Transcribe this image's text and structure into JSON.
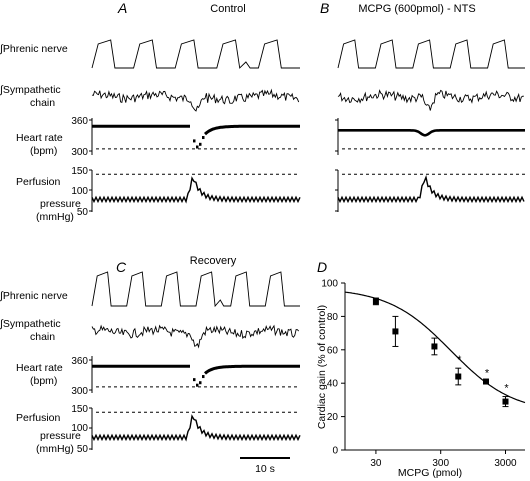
{
  "panels": {
    "A": {
      "letter": "A",
      "title": "Control"
    },
    "B": {
      "letter": "B",
      "title": "MCPG (600pmol) - NTS"
    },
    "C": {
      "letter": "C",
      "title": "Recovery"
    },
    "D": {
      "letter": "D"
    }
  },
  "row_labels": {
    "phrenic": "∫Phrenic nerve",
    "sympathetic_1": "∫Sympathetic",
    "sympathetic_2": "chain",
    "heart_rate_1": "Heart rate",
    "heart_rate_2": "(bpm)",
    "perfusion_1": "Perfusion",
    "perfusion_2": "pressure",
    "perfusion_3": "(mmHg)"
  },
  "heart_rate_ticks": [
    "360",
    "300"
  ],
  "pressure_ticks": [
    "150",
    "100",
    "50"
  ],
  "scale_bar": "10 s",
  "chart_data": [
    {
      "panel": "A",
      "type": "line",
      "traces": [
        "Phrenic nerve",
        "Sympathetic chain",
        "Heart rate",
        "Perfusion pressure"
      ],
      "heart_rate": {
        "ylim": [
          270,
          360
        ],
        "baseline": 340,
        "min_during_response": 285,
        "dashed_reference": 285
      },
      "perfusion_pressure": {
        "ylim": [
          50,
          150
        ],
        "baseline": 80,
        "peak": 135,
        "dashed_reference": 140
      }
    },
    {
      "panel": "B",
      "type": "line",
      "traces": [
        "Phrenic nerve",
        "Sympathetic chain",
        "Heart rate",
        "Perfusion pressure"
      ],
      "heart_rate": {
        "ylim": [
          270,
          360
        ],
        "baseline": 330,
        "min_during_response": 318,
        "dashed_reference": 285
      },
      "perfusion_pressure": {
        "ylim": [
          50,
          150
        ],
        "baseline": 80,
        "peak": 135,
        "dashed_reference": 140
      }
    },
    {
      "panel": "C",
      "type": "line",
      "traces": [
        "Phrenic nerve",
        "Sympathetic chain",
        "Heart rate",
        "Perfusion pressure"
      ],
      "heart_rate": {
        "ylim": [
          270,
          360
        ],
        "baseline": 335,
        "min_during_response": 285,
        "dashed_reference": 285
      },
      "perfusion_pressure": {
        "ylim": [
          50,
          150
        ],
        "baseline": 80,
        "peak": 135,
        "dashed_reference": 140
      }
    },
    {
      "panel": "D",
      "type": "scatter",
      "xlabel": "MCPG (pmol)",
      "ylabel": "Cardiac gain (% of control)",
      "xscale": "log",
      "xlim": [
        10,
        6000
      ],
      "ylim": [
        0,
        100
      ],
      "xticks": [
        "30",
        "300",
        "3000"
      ],
      "yticks": [
        "0",
        "20",
        "40",
        "60",
        "80",
        "100"
      ],
      "points": [
        {
          "x": 30,
          "y": 89,
          "err": 2,
          "sig": ""
        },
        {
          "x": 60,
          "y": 71,
          "err": 9,
          "sig": ""
        },
        {
          "x": 240,
          "y": 62,
          "err": 5,
          "sig": ""
        },
        {
          "x": 560,
          "y": 44,
          "err": 5,
          "sig": "*"
        },
        {
          "x": 1500,
          "y": 41,
          "err": 0,
          "sig": "*"
        },
        {
          "x": 3000,
          "y": 29,
          "err": 3,
          "sig": "*"
        }
      ],
      "fit": {
        "top": 97,
        "bottom": 22,
        "ic50": 430,
        "hill": 0.9
      }
    }
  ]
}
